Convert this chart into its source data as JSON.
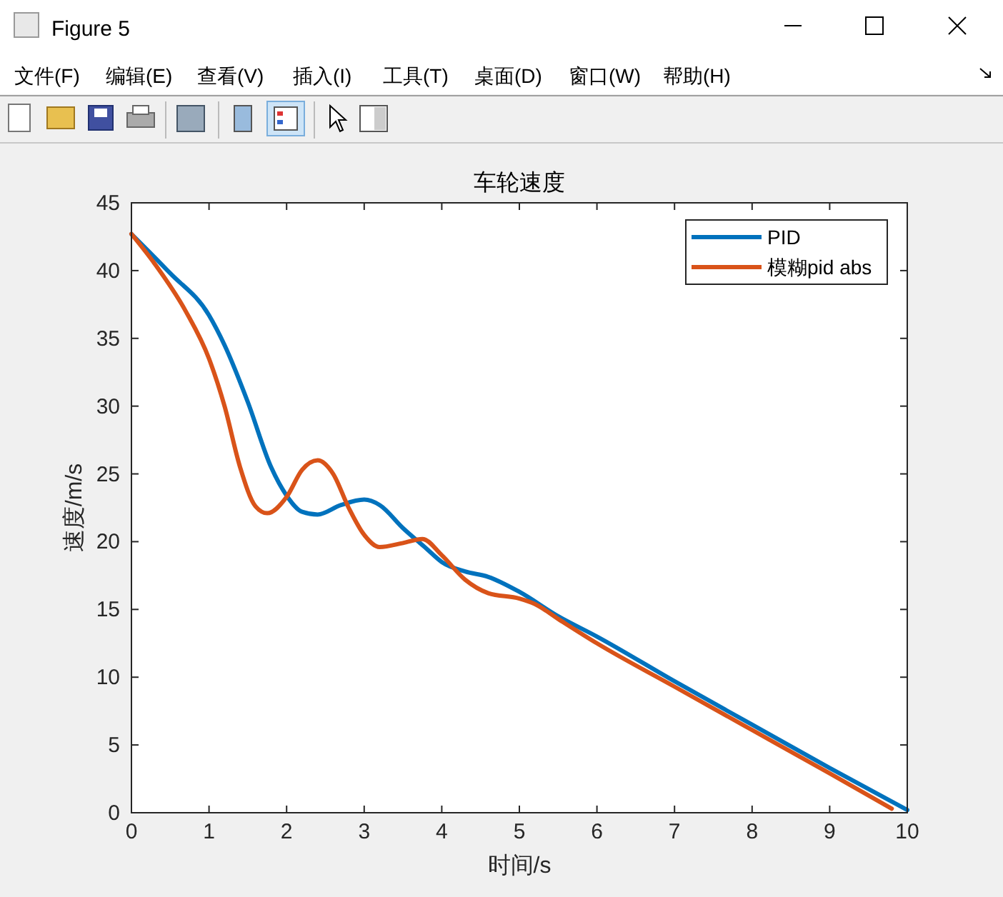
{
  "chart_data": {
    "type": "line",
    "title": "车轮速度",
    "xlabel": "时间/s",
    "ylabel": "速度/m/s",
    "annotations": [
      "Figure 5",
      "文件(F)",
      "编辑(E)",
      "查看(V)",
      "插入(I)",
      "工具(T)",
      "桌面(D)",
      "窗口(W)",
      "帮助(H)"
    ],
    "xlim": [
      0,
      10
    ],
    "ylim": [
      0,
      45
    ],
    "xticks": [
      0,
      1,
      2,
      3,
      4,
      5,
      6,
      7,
      8,
      9,
      10
    ],
    "yticks": [
      0,
      5,
      10,
      15,
      20,
      25,
      30,
      35,
      40,
      45
    ],
    "grid": false,
    "legend": "top right",
    "line_style": "solid",
    "marker": "none",
    "series": [
      {
        "name": "PID",
        "color": "#0072bd",
        "x": [
          0,
          0.5,
          1,
          1.2,
          1.5,
          1.8,
          2,
          2.2,
          2.4,
          2.7,
          3,
          3.2,
          3.5,
          3.8,
          4,
          4.3,
          4.6,
          5,
          5.5,
          6,
          7,
          8,
          9,
          10
        ],
        "values": [
          42.7,
          39.8,
          36.7,
          34.5,
          30.3,
          25.5,
          23.4,
          22.2,
          22,
          22.7,
          23.1,
          22.7,
          21,
          19.5,
          18.5,
          17.8,
          17.4,
          16.3,
          14.5,
          13,
          9.7,
          6.5,
          3.3,
          0.2
        ]
      },
      {
        "name": "模糊pid abs",
        "color": "#d95319",
        "x": [
          0,
          0.3,
          0.7,
          1,
          1.2,
          1.4,
          1.6,
          1.75,
          2,
          2.2,
          2.4,
          2.6,
          2.8,
          3,
          3.2,
          3.5,
          3.75,
          4,
          4.3,
          4.6,
          5,
          5.2,
          5.5,
          6,
          7,
          8,
          9,
          9.8
        ],
        "values": [
          42.7,
          40.5,
          37,
          33.5,
          30,
          25.5,
          22.6,
          22.1,
          23.3,
          25.3,
          26,
          25,
          22.5,
          20.5,
          19.6,
          19.9,
          20.2,
          19,
          17.2,
          16.2,
          15.8,
          15.4,
          14.3,
          12.5,
          9.3,
          6.1,
          2.9,
          0.3
        ]
      }
    ]
  }
}
